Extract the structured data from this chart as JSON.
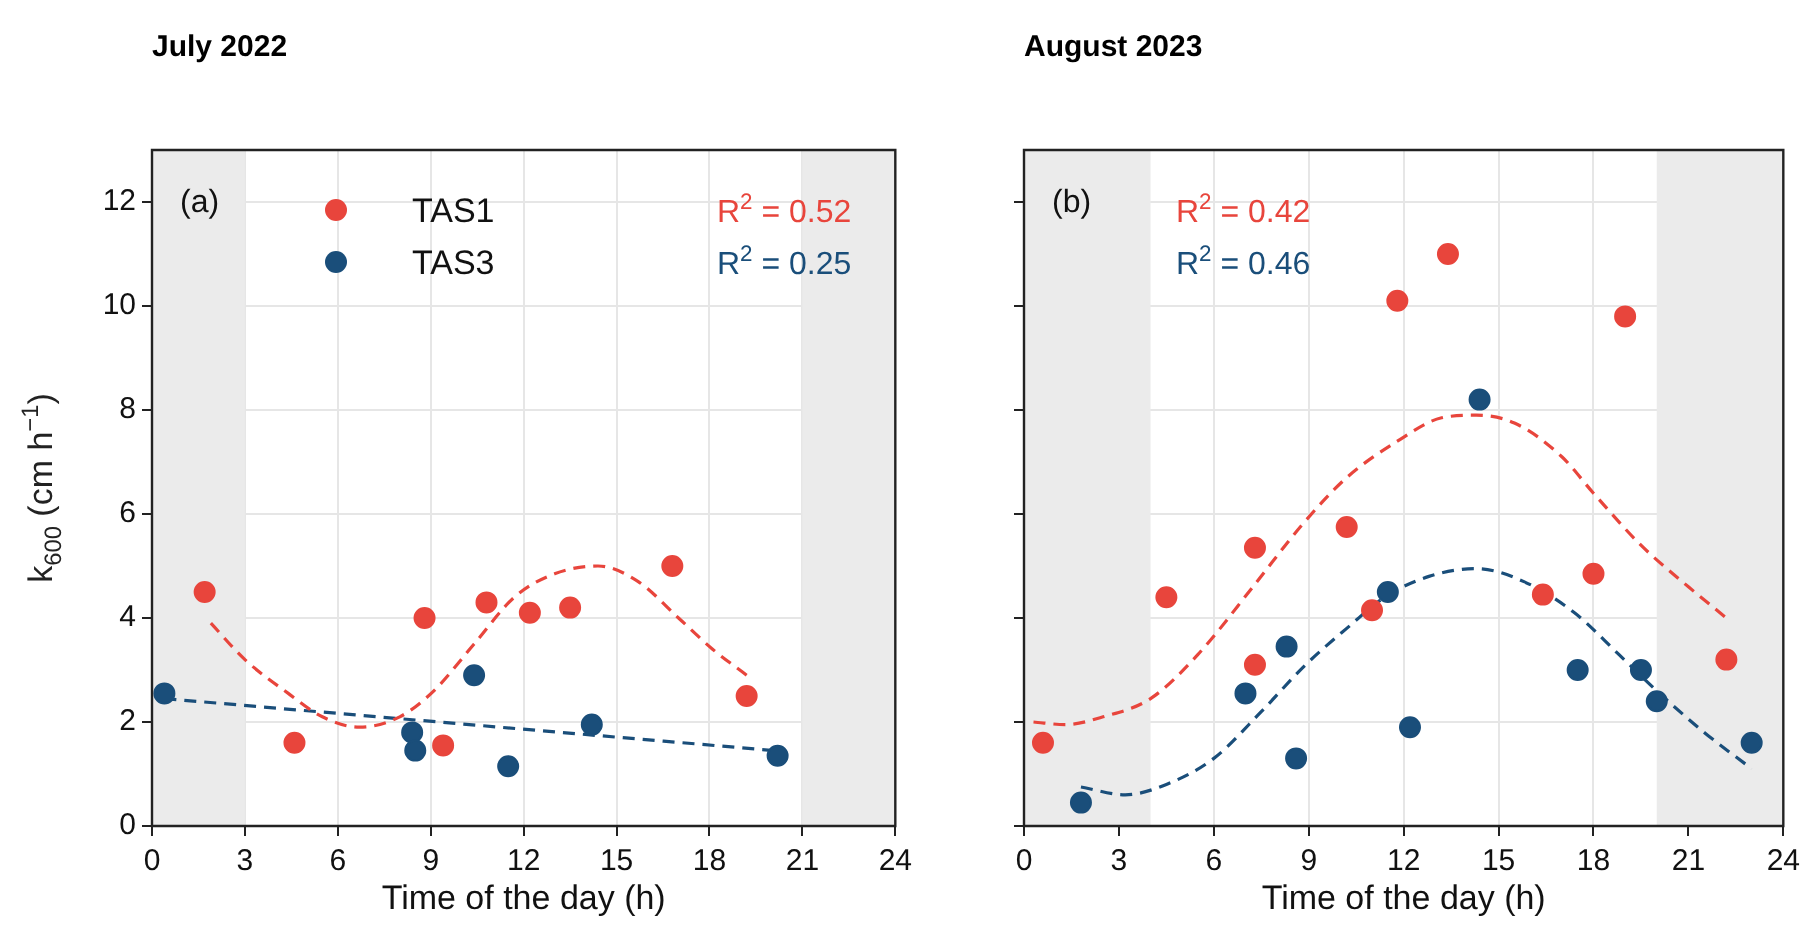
{
  "chart_data": [
    {
      "type": "scatter",
      "title": "July 2022",
      "xlabel": "Time of the day (h)",
      "ylabel": "k$_{600}$ (cm h$^{−1}$)",
      "xlim": [
        0,
        24
      ],
      "xticks": [
        0,
        3,
        6,
        9,
        12,
        15,
        18,
        21,
        24
      ],
      "ylim": [
        0,
        13
      ],
      "yticks": [
        0,
        2,
        4,
        6,
        8,
        10,
        12
      ],
      "grid": true,
      "legend": "top left",
      "marker": "circle",
      "bands": [
        {
          "axis": "x",
          "from": 0,
          "to": 3,
          "color": "#ebebeb"
        },
        {
          "axis": "x",
          "from": 21,
          "to": 24,
          "color": "#ebebeb"
        }
      ],
      "annotations": [
        "(a)",
        "R$^{2}$ = 0.52",
        "R$^{2}$ = 0.25"
      ],
      "series": [
        {
          "name": "TAS1",
          "color": "#e8453c",
          "x": [
            1.7,
            4.6,
            8.8,
            9.4,
            10.8,
            12.2,
            13.5,
            16.8,
            19.2
          ],
          "values": [
            4.5,
            1.6,
            4.0,
            1.55,
            4.3,
            4.1,
            4.2,
            5.0,
            2.5
          ]
        },
        {
          "name": "TAS3",
          "color": "#1a4e7a",
          "x": [
            0.4,
            8.4,
            8.5,
            10.4,
            11.5,
            14.2,
            20.2
          ],
          "values": [
            2.55,
            1.8,
            1.45,
            2.9,
            1.15,
            1.95,
            1.35
          ]
        },
        {
          "type": "line",
          "marker": "none",
          "color": "#e8453c",
          "line_style": "dashed",
          "x": [
            1.9,
            3.0,
            4.4,
            5.5,
            6.7,
            8.0,
            9.1,
            10.4,
            11.7,
            13.0,
            14.4,
            15.7,
            17.0,
            18.1,
            19.2
          ],
          "values": [
            3.9,
            3.2,
            2.55,
            2.1,
            1.9,
            2.1,
            2.6,
            3.5,
            4.4,
            4.85,
            5.0,
            4.7,
            4.0,
            3.4,
            2.9
          ]
        },
        {
          "type": "line",
          "marker": "none",
          "color": "#1a4e7a",
          "line_style": "dashed",
          "x": [
            0.4,
            20.1
          ],
          "values": [
            2.45,
            1.45
          ]
        }
      ]
    },
    {
      "type": "scatter",
      "title": "August 2023",
      "xlabel": "Time of the day (h)",
      "xlim": [
        0,
        24
      ],
      "xticks": [
        0,
        3,
        6,
        9,
        12,
        15,
        18,
        21,
        24
      ],
      "ylim": [
        0,
        13
      ],
      "yticks": [
        0,
        2,
        4,
        6,
        8,
        10,
        12
      ],
      "grid": true,
      "tick_labels": "x",
      "marker": "circle",
      "bands": [
        {
          "axis": "x",
          "from": 0,
          "to": 4,
          "color": "#ebebeb"
        },
        {
          "axis": "x",
          "from": 20,
          "to": 24,
          "color": "#ebebeb"
        }
      ],
      "annotations": [
        "(b)",
        "R$^{2}$ = 0.42",
        "R$^{2}$ = 0.46"
      ],
      "series": [
        {
          "color": "#e8453c",
          "x": [
            0.6,
            4.5,
            7.3,
            7.3,
            10.2,
            11.0,
            11.8,
            13.4,
            16.4,
            18.0,
            19.0,
            22.2
          ],
          "values": [
            1.6,
            4.4,
            5.35,
            3.1,
            5.75,
            4.15,
            10.1,
            11.0,
            4.45,
            4.85,
            9.8,
            3.2
          ]
        },
        {
          "color": "#1a4e7a",
          "x": [
            1.8,
            7.0,
            8.3,
            8.6,
            11.5,
            12.2,
            14.4,
            17.5,
            19.5,
            20.0,
            23.0
          ],
          "values": [
            0.45,
            2.55,
            3.45,
            1.3,
            4.5,
            1.9,
            8.2,
            3.0,
            3.0,
            2.4,
            1.6
          ]
        },
        {
          "type": "line",
          "marker": "none",
          "color": "#e8453c",
          "line_style": "dashed",
          "x": [
            0.3,
            1.3,
            2.5,
            4.0,
            5.5,
            7.3,
            8.8,
            10.2,
            11.8,
            13.2,
            14.3,
            15.5,
            17.0,
            18.0,
            19.5,
            21.0,
            22.2
          ],
          "values": [
            2.0,
            1.95,
            2.1,
            2.45,
            3.3,
            4.65,
            5.8,
            6.7,
            7.4,
            7.85,
            7.9,
            7.75,
            7.1,
            6.4,
            5.4,
            4.6,
            4.0
          ]
        },
        {
          "type": "line",
          "marker": "none",
          "color": "#1a4e7a",
          "line_style": "dashed",
          "x": [
            1.8,
            3.2,
            4.5,
            6.0,
            7.5,
            8.9,
            10.2,
            11.4,
            12.8,
            14.3,
            15.8,
            17.4,
            18.8,
            20.0,
            21.5,
            23.0
          ],
          "values": [
            0.75,
            0.6,
            0.8,
            1.3,
            2.2,
            3.1,
            3.8,
            4.4,
            4.8,
            4.95,
            4.7,
            4.1,
            3.3,
            2.6,
            1.8,
            1.1
          ]
        }
      ]
    }
  ]
}
